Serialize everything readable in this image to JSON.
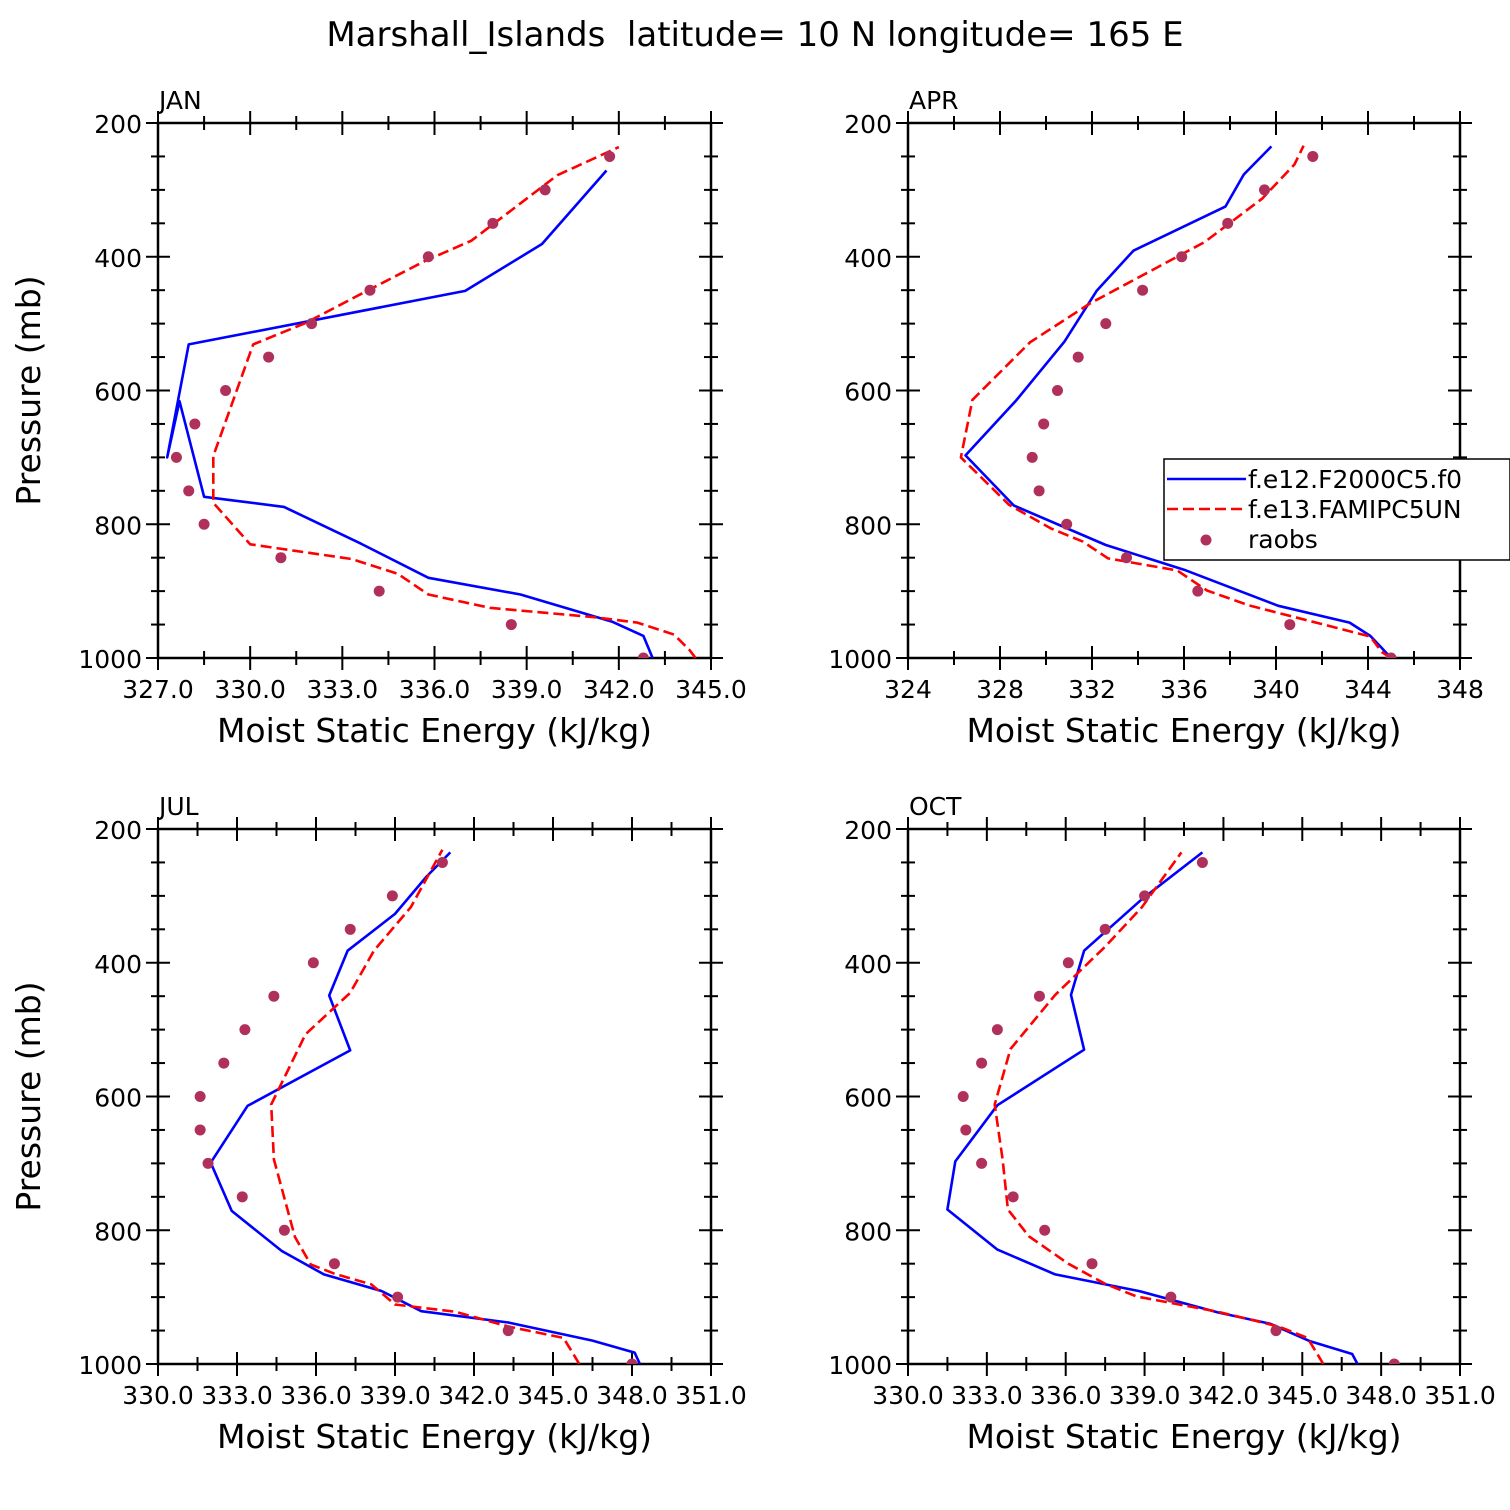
{
  "figure_title": "Marshall_Islands  latitude= 10 N longitude= 165 E",
  "colors": {
    "model1": "#0000ff",
    "model2": "#ff0000",
    "raobs": "#b0305c",
    "axis": "#000000"
  },
  "legend": {
    "panel": "APR",
    "entries": [
      {
        "label": "f.e12.F2000C5.f0",
        "style": "solid",
        "color": "#0000ff"
      },
      {
        "label": "f.e13.FAMIPC5UN",
        "style": "dashed",
        "color": "#ff0000"
      },
      {
        "label": "raobs",
        "style": "marker",
        "color": "#b0305c"
      }
    ]
  },
  "chart_data": [
    {
      "type": "line",
      "panel": "JAN",
      "title": "JAN",
      "xlabel": "Moist Static Energy (kJ/kg)",
      "ylabel": "Pressure (mb)",
      "xlim": [
        327,
        345
      ],
      "ylim": [
        1000,
        200
      ],
      "xticks": [
        "327.0",
        "330.0",
        "333.0",
        "336.0",
        "339.0",
        "342.0",
        "345.0"
      ],
      "xtick_values": [
        327,
        330,
        333,
        336,
        339,
        342,
        345
      ],
      "yticks": [
        "200",
        "400",
        "600",
        "800",
        "1000"
      ],
      "series": [
        {
          "name": "f.e12.F2000C5.f0",
          "style": "solid",
          "x": [
            343.1,
            342.8,
            341.8,
            338.8,
            335.8,
            333.6,
            331.1,
            328.5,
            327.7,
            327.3,
            328.0,
            337.0,
            339.5,
            341.6
          ],
          "y": [
            1000,
            967,
            946,
            905,
            880,
            829,
            774,
            759,
            616,
            700,
            531,
            451,
            381,
            271
          ]
        },
        {
          "name": "f.e13.FAMIPC5UN",
          "style": "dashed",
          "x": [
            344.5,
            344.3,
            343.8,
            342.6,
            341.2,
            337.8,
            335.8,
            334.8,
            333.3,
            330.0,
            328.8,
            328.8,
            330.1,
            331.8,
            333.8,
            335.7,
            337.2,
            340.0,
            342.0
          ],
          "y": [
            1000,
            988,
            965,
            947,
            939,
            925,
            905,
            874,
            852,
            830,
            768,
            698,
            531,
            499,
            451,
            406,
            376,
            278,
            236
          ]
        },
        {
          "name": "raobs",
          "style": "marker",
          "x": [
            342.8,
            338.5,
            334.2,
            331.0,
            328.5,
            328.0,
            327.6,
            328.2,
            329.2,
            330.6,
            332.0,
            333.9,
            335.8,
            337.9,
            339.6,
            341.7
          ],
          "y": [
            1000,
            950,
            900,
            850,
            800,
            750,
            700,
            650,
            600,
            550,
            500,
            450,
            400,
            350,
            300,
            250
          ]
        }
      ]
    },
    {
      "type": "line",
      "panel": "APR",
      "title": "APR",
      "xlabel": "Moist Static Energy (kJ/kg)",
      "ylabel": "",
      "xlim": [
        324,
        348
      ],
      "ylim": [
        1000,
        200
      ],
      "xticks": [
        "324",
        "328",
        "332",
        "336",
        "340",
        "344",
        "348"
      ],
      "xtick_values": [
        324,
        328,
        332,
        336,
        340,
        344,
        348
      ],
      "yticks": [
        "200",
        "400",
        "600",
        "800",
        "1000"
      ],
      "series": [
        {
          "name": "f.e12.F2000C5.f0",
          "style": "solid",
          "x": [
            345.0,
            344.6,
            344.1,
            343.2,
            340.1,
            336.0,
            332.6,
            328.6,
            326.5,
            328.7,
            330.8,
            332.2,
            333.8,
            337.8,
            338.6,
            339.8
          ],
          "y": [
            1000,
            985,
            967,
            947,
            922,
            868,
            831,
            772,
            697,
            615,
            527,
            451,
            391,
            325,
            277,
            235
          ]
        },
        {
          "name": "f.e13.FAMIPC5UN",
          "style": "dashed",
          "x": [
            345.0,
            344.6,
            344.1,
            338.8,
            337.0,
            335.7,
            332.7,
            331.6,
            330.2,
            328.4,
            326.3,
            326.8,
            329.3,
            331.9,
            336.9,
            339.4,
            340.8,
            341.2
          ],
          "y": [
            1000,
            991,
            968,
            921,
            899,
            869,
            851,
            826,
            806,
            771,
            700,
            614,
            528,
            470,
            378,
            313,
            262,
            234
          ]
        },
        {
          "name": "raobs",
          "style": "marker",
          "x": [
            345.0,
            340.6,
            336.6,
            333.5,
            330.9,
            329.7,
            329.4,
            329.9,
            330.5,
            331.4,
            332.6,
            334.2,
            335.9,
            337.9,
            339.5,
            341.6
          ],
          "y": [
            1000,
            950,
            900,
            850,
            800,
            750,
            700,
            650,
            600,
            550,
            500,
            450,
            400,
            350,
            300,
            250
          ]
        }
      ]
    },
    {
      "type": "line",
      "panel": "JUL",
      "title": "JUL",
      "xlabel": "Moist Static Energy (kJ/kg)",
      "ylabel": "Pressure (mb)",
      "xlim": [
        330,
        351
      ],
      "ylim": [
        1000,
        200
      ],
      "xticks": [
        "330.0",
        "333.0",
        "336.0",
        "339.0",
        "342.0",
        "345.0",
        "348.0",
        "351.0"
      ],
      "xtick_values": [
        330,
        333,
        336,
        339,
        342,
        345,
        348,
        351
      ],
      "yticks": [
        "200",
        "400",
        "600",
        "800",
        "1000"
      ],
      "series": [
        {
          "name": "f.e12.F2000C5.f0",
          "style": "solid",
          "x": [
            348.3,
            348.1,
            346.5,
            343.3,
            340.0,
            338.5,
            336.3,
            334.7,
            332.8,
            332.0,
            333.4,
            337.3,
            336.5,
            337.2,
            339.0,
            340.2,
            341.1
          ],
          "y": [
            1000,
            983,
            965,
            938,
            921,
            891,
            866,
            831,
            771,
            699,
            614,
            531,
            449,
            382,
            327,
            271,
            235
          ]
        },
        {
          "name": "f.e13.FAMIPC5UN",
          "style": "dashed",
          "x": [
            346.0,
            345.8,
            345.4,
            343.3,
            341.3,
            339.0,
            338.1,
            336.7,
            335.8,
            335.2,
            334.4,
            334.3,
            335.6,
            337.3,
            338.2,
            339.6,
            340.8
          ],
          "y": [
            1000,
            987,
            961,
            944,
            922,
            911,
            881,
            865,
            851,
            810,
            694,
            612,
            507,
            445,
            382,
            317,
            231
          ]
        },
        {
          "name": "raobs",
          "style": "marker",
          "x": [
            348.0,
            343.3,
            339.1,
            336.7,
            334.8,
            333.2,
            331.9,
            331.6,
            331.6,
            332.5,
            333.3,
            334.4,
            335.9,
            337.3,
            338.9,
            340.8
          ],
          "y": [
            1000,
            950,
            900,
            850,
            800,
            750,
            700,
            650,
            600,
            550,
            500,
            450,
            400,
            350,
            300,
            250
          ]
        }
      ]
    },
    {
      "type": "line",
      "panel": "OCT",
      "title": "OCT",
      "xlabel": "Moist Static Energy (kJ/kg)",
      "ylabel": "",
      "xlim": [
        330,
        351
      ],
      "ylim": [
        1000,
        200
      ],
      "xticks": [
        "330.0",
        "333.0",
        "336.0",
        "339.0",
        "342.0",
        "345.0",
        "348.0",
        "351.0"
      ],
      "xtick_values": [
        330,
        333,
        336,
        339,
        342,
        345,
        348,
        351
      ],
      "yticks": [
        "200",
        "400",
        "600",
        "800",
        "1000"
      ],
      "series": [
        {
          "name": "f.e12.F2000C5.f0",
          "style": "solid",
          "x": [
            347.1,
            346.9,
            345.3,
            343.8,
            341.8,
            338.8,
            335.6,
            333.4,
            331.5,
            331.8,
            333.4,
            336.7,
            336.2,
            336.7,
            338.9,
            341.2
          ],
          "y": [
            1000,
            985,
            966,
            940,
            923,
            891,
            866,
            829,
            769,
            697,
            613,
            530,
            448,
            382,
            305,
            235
          ]
        },
        {
          "name": "f.e13.FAMIPC5UN",
          "style": "dashed",
          "x": [
            345.8,
            345.6,
            345.2,
            344.1,
            341.8,
            338.7,
            337.5,
            336.1,
            334.6,
            333.8,
            333.6,
            333.3,
            333.9,
            335.6,
            337.5,
            338.9,
            340.4
          ],
          "y": [
            1000,
            987,
            961,
            944,
            922,
            899,
            880,
            850,
            809,
            769,
            694,
            612,
            529,
            448,
            376,
            317,
            235
          ]
        },
        {
          "name": "raobs",
          "style": "marker",
          "x": [
            348.5,
            344.0,
            340.0,
            337.0,
            335.2,
            334.0,
            332.8,
            332.2,
            332.1,
            332.8,
            333.4,
            335.0,
            336.1,
            337.5,
            339.0,
            341.2
          ],
          "y": [
            1000,
            950,
            900,
            850,
            800,
            750,
            700,
            650,
            600,
            550,
            500,
            450,
            400,
            350,
            300,
            250
          ]
        }
      ]
    }
  ]
}
